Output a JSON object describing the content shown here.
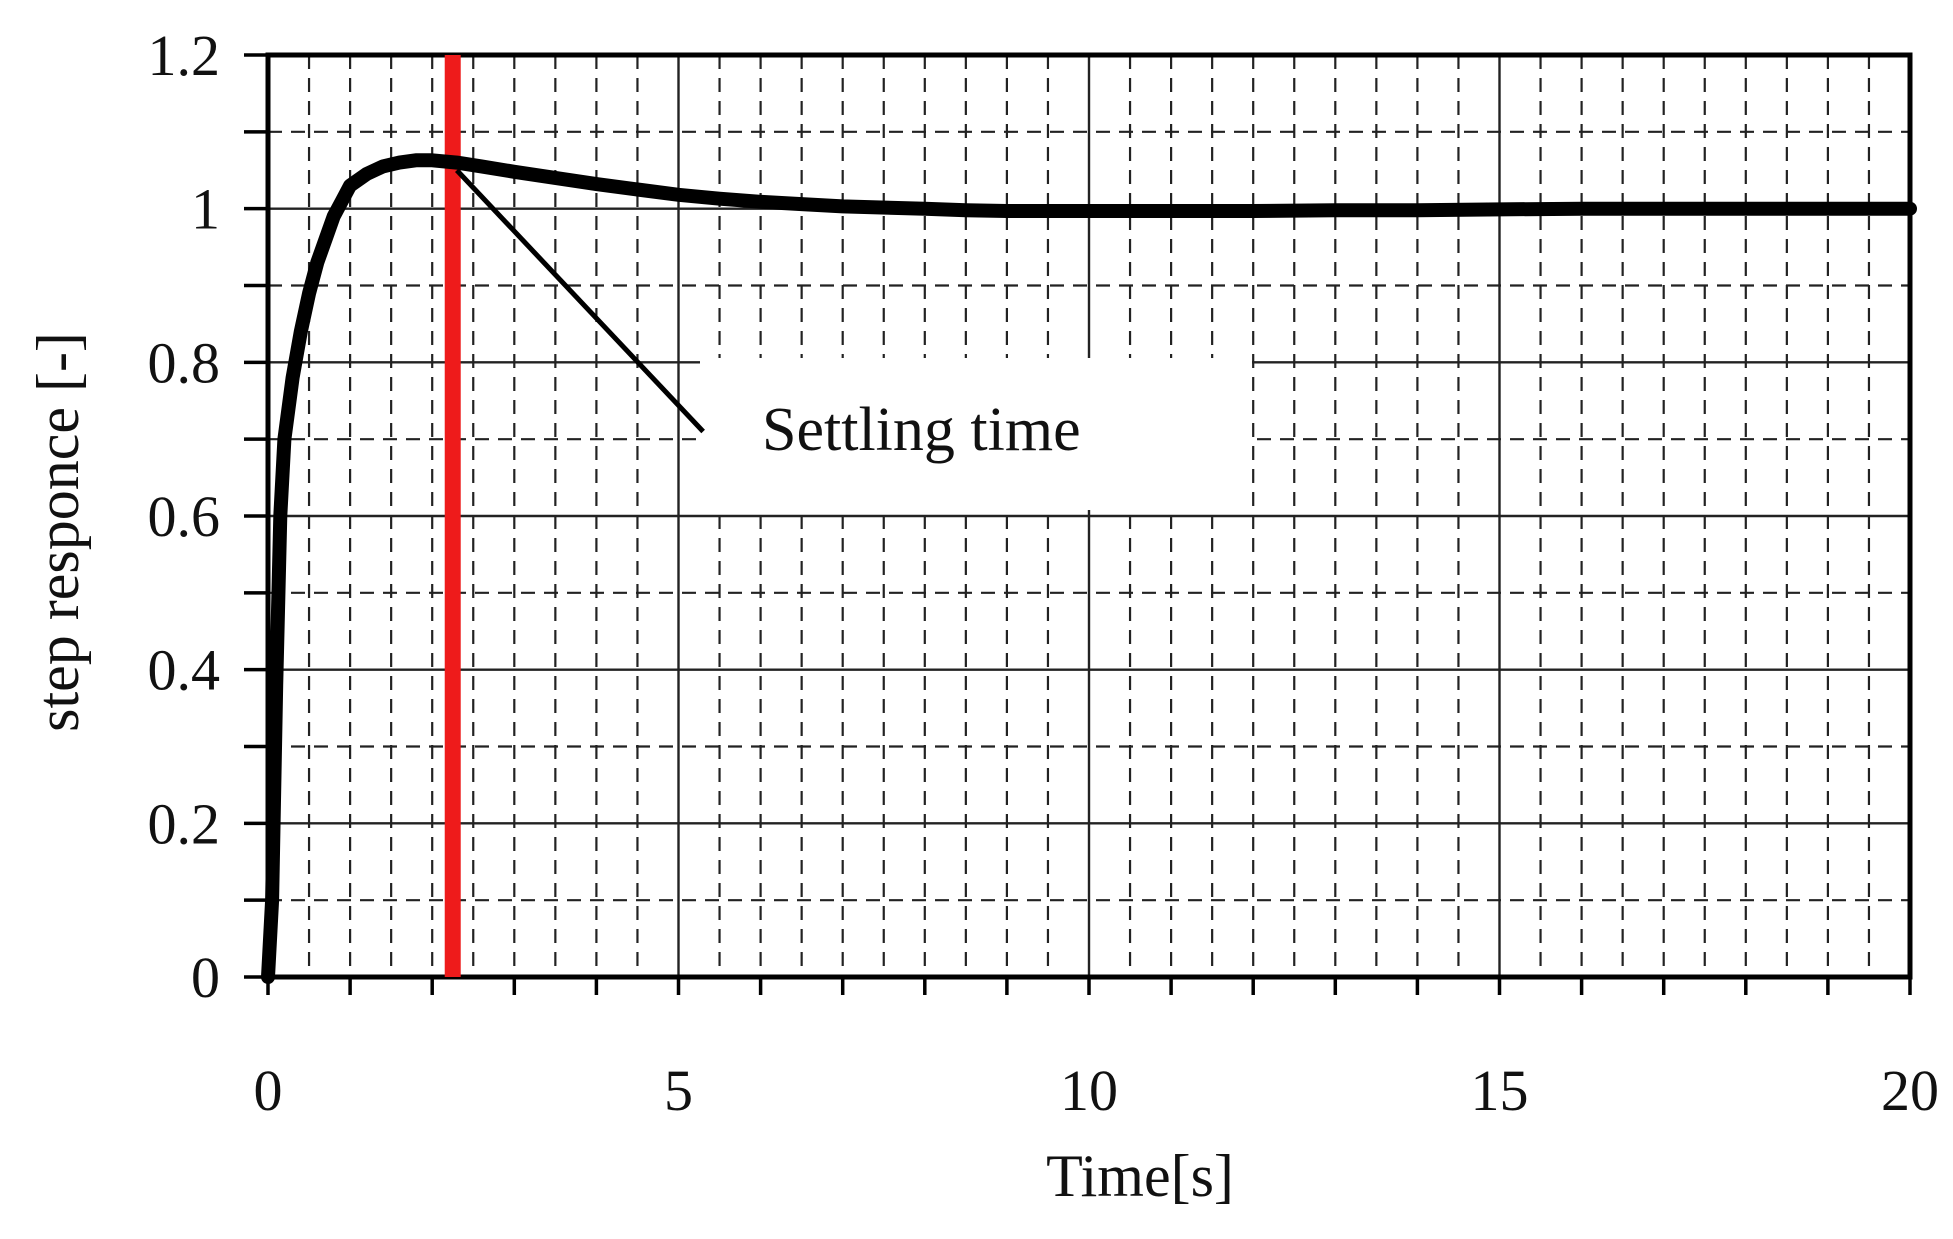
{
  "chart_data": {
    "type": "line",
    "title": "",
    "xlabel": "Time[s]",
    "ylabel": "step responce [-]",
    "xlim": [
      0,
      20
    ],
    "ylim": [
      0,
      1.2
    ],
    "x_ticks": [
      0,
      5,
      10,
      15,
      20
    ],
    "x_tick_labels": [
      "0",
      "5",
      "10",
      "15",
      "20"
    ],
    "y_ticks": [
      0,
      0.2,
      0.4,
      0.6,
      0.8,
      1.0,
      1.2
    ],
    "y_tick_labels": [
      "0",
      "0.2",
      "0.4",
      "0.6",
      "0.8",
      "1",
      "1.2"
    ],
    "grid": {
      "major": true,
      "minor": true,
      "x_minor_step": 0.5,
      "y_minor_step": 0.1
    },
    "series": [
      {
        "color": "#000000",
        "x": [
          0,
          0.05,
          0.1,
          0.15,
          0.2,
          0.3,
          0.4,
          0.5,
          0.6,
          0.7,
          0.8,
          0.9,
          1.0,
          1.2,
          1.4,
          1.6,
          1.8,
          2.0,
          2.3,
          2.6,
          3.0,
          3.5,
          4.0,
          4.5,
          5.0,
          5.5,
          6.0,
          6.5,
          7.0,
          8.0,
          8.5,
          9.0,
          10.0,
          11.0,
          12.0,
          13.0,
          14.0,
          15.0,
          16.0,
          17.0,
          18.0,
          19.0,
          20.0
        ],
        "y": [
          0,
          0.1,
          0.38,
          0.6,
          0.7,
          0.78,
          0.84,
          0.89,
          0.93,
          0.96,
          0.99,
          1.01,
          1.03,
          1.045,
          1.055,
          1.06,
          1.063,
          1.063,
          1.06,
          1.055,
          1.048,
          1.04,
          1.032,
          1.025,
          1.018,
          1.013,
          1.009,
          1.006,
          1.003,
          1.0,
          0.998,
          0.997,
          0.997,
          0.997,
          0.997,
          0.998,
          0.998,
          0.999,
          1.0,
          1.0,
          1.0,
          1.0,
          1.0
        ]
      }
    ],
    "vertical_marker": {
      "x": 2.25,
      "color": "#ee1b1b"
    },
    "annotations": [
      {
        "text": "Settling time",
        "arrow_from": [
          5.3,
          0.71
        ],
        "arrow_to": [
          2.3,
          1.05
        ]
      }
    ]
  }
}
